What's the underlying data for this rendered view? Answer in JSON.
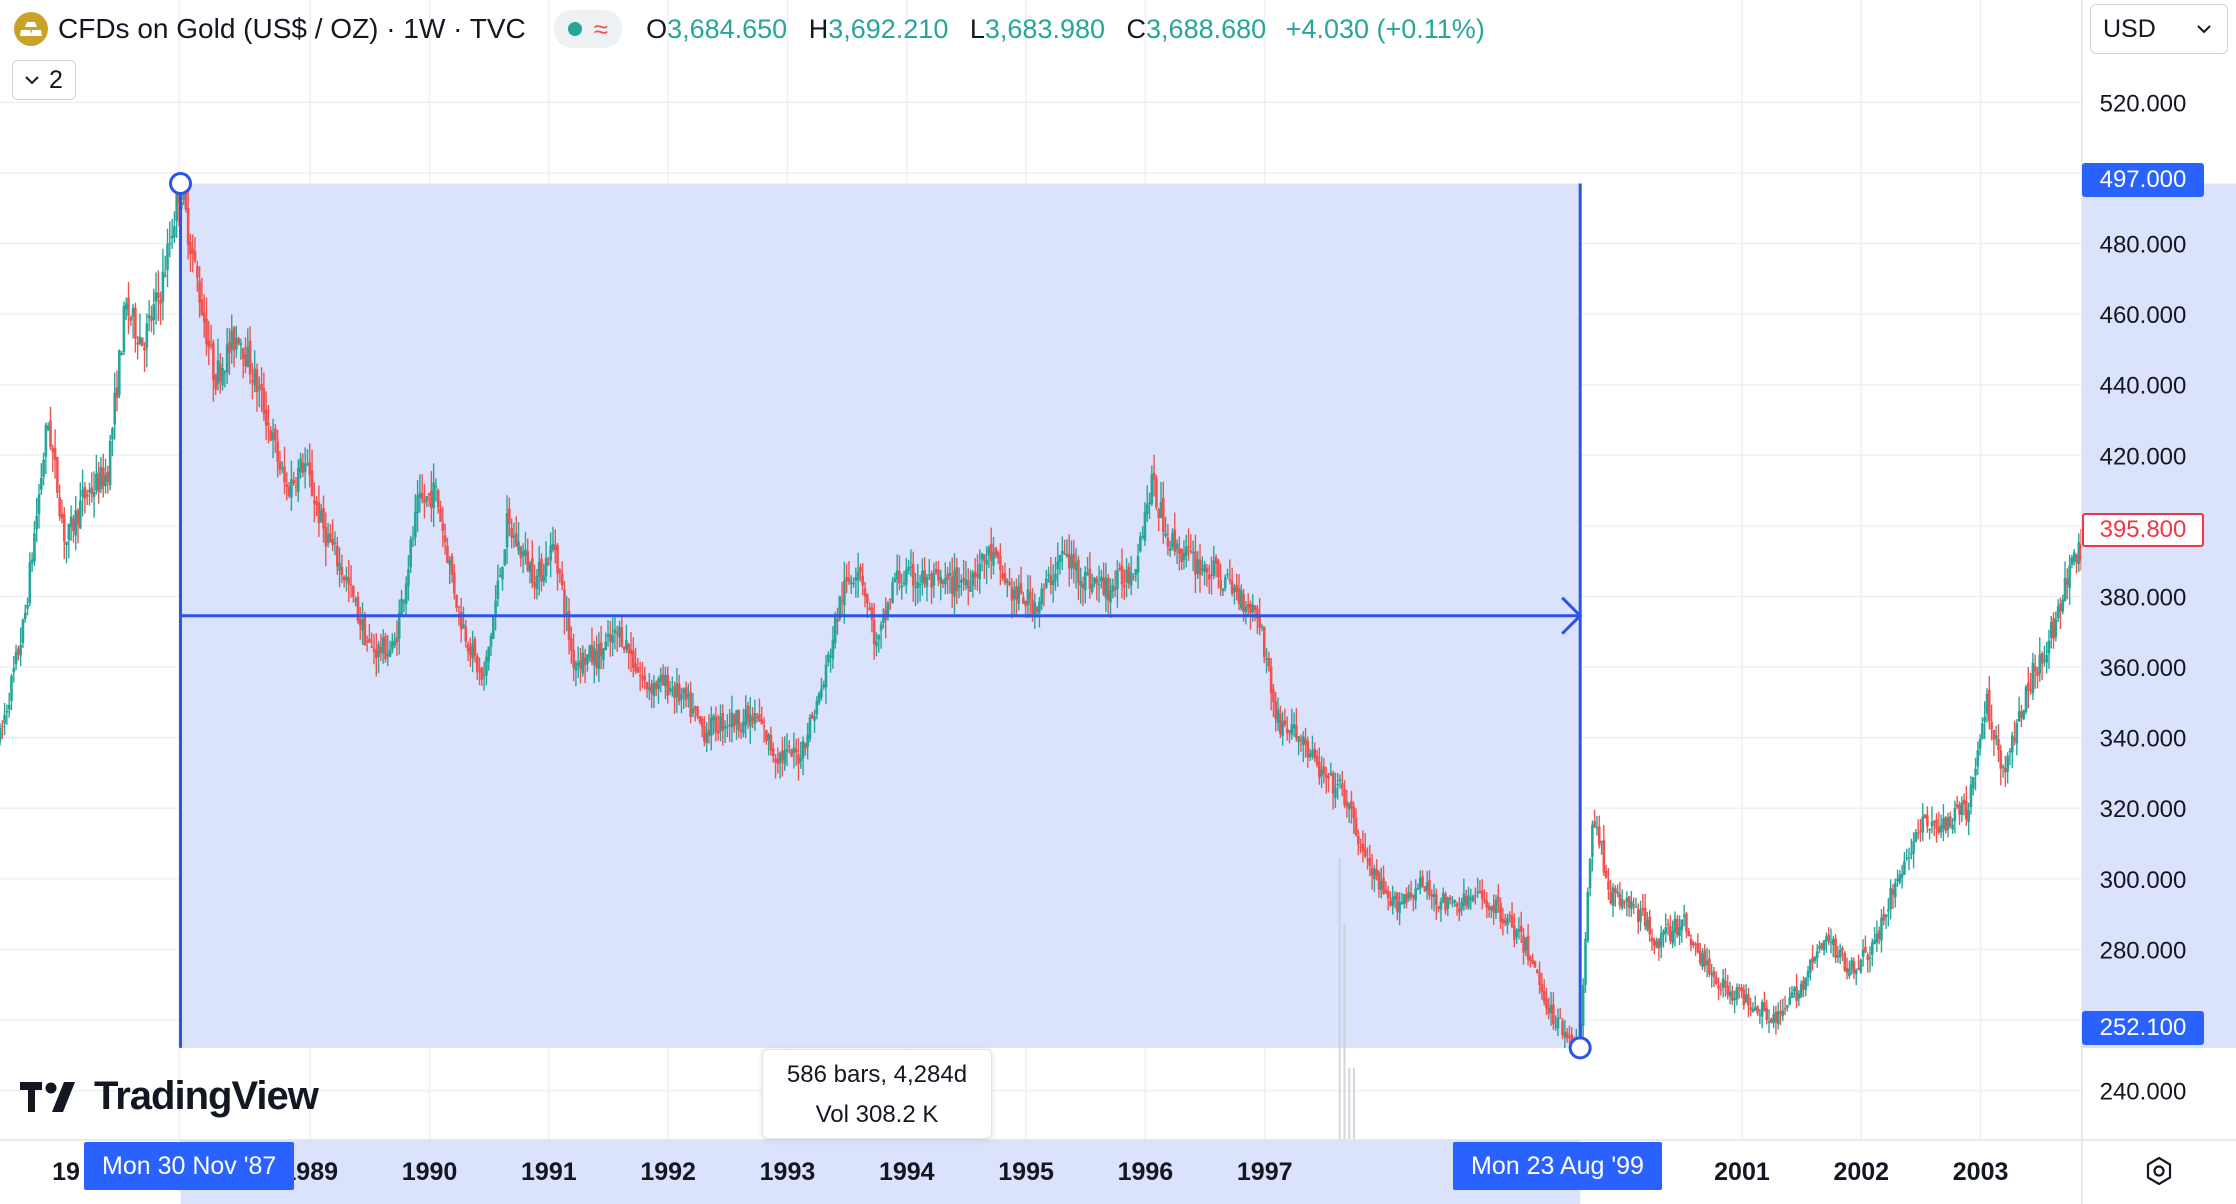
{
  "header": {
    "symbol_title": "CFDs on Gold (US$ / OZ) · 1W · TVC",
    "symbol_icon": "gold-bars-icon",
    "status_icon": "market-status-dot-icon",
    "approx_symbol": "≈",
    "ohlc": {
      "o_key": "O",
      "o_val": "3,684.650",
      "h_key": "H",
      "h_val": "3,692.210",
      "l_key": "L",
      "l_val": "3,683.980",
      "c_key": "C",
      "c_val": "3,688.680",
      "change": "+4.030 (+0.11%)"
    },
    "collapse_count": "2"
  },
  "currency_label": "USD",
  "price_labels": {
    "range_top": "497.000",
    "range_bottom": "252.100",
    "last_price": "395.800"
  },
  "range_tool": {
    "start_date": "Mon 30 Nov '87",
    "end_date": "Mon 23 Aug '99",
    "bars_text": "586 bars, 4,284d",
    "vol_text": "Vol 308.2 K"
  },
  "brand": "TradingView",
  "colors": {
    "up": "#26a69a",
    "down": "#ef5350",
    "range_fill": "#dbe2fb",
    "range_line": "#2a55e5",
    "accent": "#2962ff"
  },
  "chart_data": {
    "type": "candlestick",
    "title": "CFDs on Gold (US$ / OZ) · 1W · TVC",
    "ylabel": "USD",
    "y_ticks": [
      240,
      260,
      280,
      300,
      320,
      340,
      360,
      380,
      400,
      420,
      440,
      460,
      480,
      500,
      520
    ],
    "ylim": [
      226,
      532
    ],
    "x_tick_labels": [
      "19",
      "1989",
      "1990",
      "1991",
      "1992",
      "1993",
      "1994",
      "1995",
      "1996",
      "1997",
      "2001",
      "2002",
      "2003"
    ],
    "x_tick_years": [
      1987.9,
      1989,
      1990,
      1991,
      1992,
      1993,
      1994,
      1995,
      1996,
      1997,
      2001,
      2002,
      2003
    ],
    "xlim": [
      1986.4,
      2003.85
    ],
    "range_measure": {
      "start_year": 1987.913,
      "end_year": 1999.644,
      "high": 497.0,
      "low": 252.1,
      "bars": 586,
      "days": 4284,
      "volume": "308.2 K"
    },
    "last_price": 395.8,
    "price_path": [
      [
        1986.4,
        340
      ],
      [
        1986.6,
        372
      ],
      [
        1986.8,
        430
      ],
      [
        1986.95,
        395
      ],
      [
        1987.1,
        408
      ],
      [
        1987.3,
        415
      ],
      [
        1987.45,
        462
      ],
      [
        1987.6,
        452
      ],
      [
        1987.75,
        467
      ],
      [
        1987.91,
        497
      ],
      [
        1988.05,
        470
      ],
      [
        1988.2,
        442
      ],
      [
        1988.4,
        455
      ],
      [
        1988.6,
        435
      ],
      [
        1988.8,
        410
      ],
      [
        1988.95,
        418
      ],
      [
        1989.1,
        400
      ],
      [
        1989.3,
        385
      ],
      [
        1989.5,
        365
      ],
      [
        1989.7,
        365
      ],
      [
        1989.9,
        405
      ],
      [
        1990.05,
        410
      ],
      [
        1990.25,
        375
      ],
      [
        1990.45,
        355
      ],
      [
        1990.65,
        400
      ],
      [
        1990.9,
        385
      ],
      [
        1991.05,
        395
      ],
      [
        1991.2,
        362
      ],
      [
        1991.4,
        363
      ],
      [
        1991.6,
        370
      ],
      [
        1991.8,
        355
      ],
      [
        1992.0,
        355
      ],
      [
        1992.15,
        350
      ],
      [
        1992.3,
        342
      ],
      [
        1992.5,
        345
      ],
      [
        1992.75,
        345
      ],
      [
        1992.9,
        335
      ],
      [
        1993.1,
        335
      ],
      [
        1993.3,
        355
      ],
      [
        1993.45,
        380
      ],
      [
        1993.6,
        390
      ],
      [
        1993.75,
        365
      ],
      [
        1993.9,
        385
      ],
      [
        1994.1,
        385
      ],
      [
        1994.3,
        383
      ],
      [
        1994.5,
        385
      ],
      [
        1994.7,
        392
      ],
      [
        1994.9,
        380
      ],
      [
        1995.1,
        378
      ],
      [
        1995.3,
        392
      ],
      [
        1995.5,
        385
      ],
      [
        1995.7,
        382
      ],
      [
        1995.9,
        388
      ],
      [
        1996.05,
        412
      ],
      [
        1996.2,
        396
      ],
      [
        1996.4,
        390
      ],
      [
        1996.6,
        386
      ],
      [
        1996.8,
        380
      ],
      [
        1996.95,
        375
      ],
      [
        1997.1,
        345
      ],
      [
        1997.3,
        340
      ],
      [
        1997.5,
        328
      ],
      [
        1997.65,
        325
      ],
      [
        1997.85,
        305
      ],
      [
        1998.05,
        292
      ],
      [
        1998.3,
        298
      ],
      [
        1998.55,
        292
      ],
      [
        1998.8,
        295
      ],
      [
        1999.0,
        290
      ],
      [
        1999.2,
        280
      ],
      [
        1999.4,
        262
      ],
      [
        1999.64,
        252
      ],
      [
        1999.75,
        320
      ],
      [
        1999.9,
        295
      ],
      [
        2000.1,
        292
      ],
      [
        2000.3,
        282
      ],
      [
        2000.5,
        288
      ],
      [
        2000.7,
        275
      ],
      [
        2000.9,
        268
      ],
      [
        2001.1,
        265
      ],
      [
        2001.3,
        260
      ],
      [
        2001.5,
        270
      ],
      [
        2001.7,
        283
      ],
      [
        2001.9,
        275
      ],
      [
        2002.1,
        280
      ],
      [
        2002.3,
        300
      ],
      [
        2002.5,
        315
      ],
      [
        2002.7,
        315
      ],
      [
        2002.9,
        320
      ],
      [
        2003.05,
        350
      ],
      [
        2003.2,
        330
      ],
      [
        2003.4,
        355
      ],
      [
        2003.6,
        370
      ],
      [
        2003.8,
        392
      ]
    ]
  }
}
